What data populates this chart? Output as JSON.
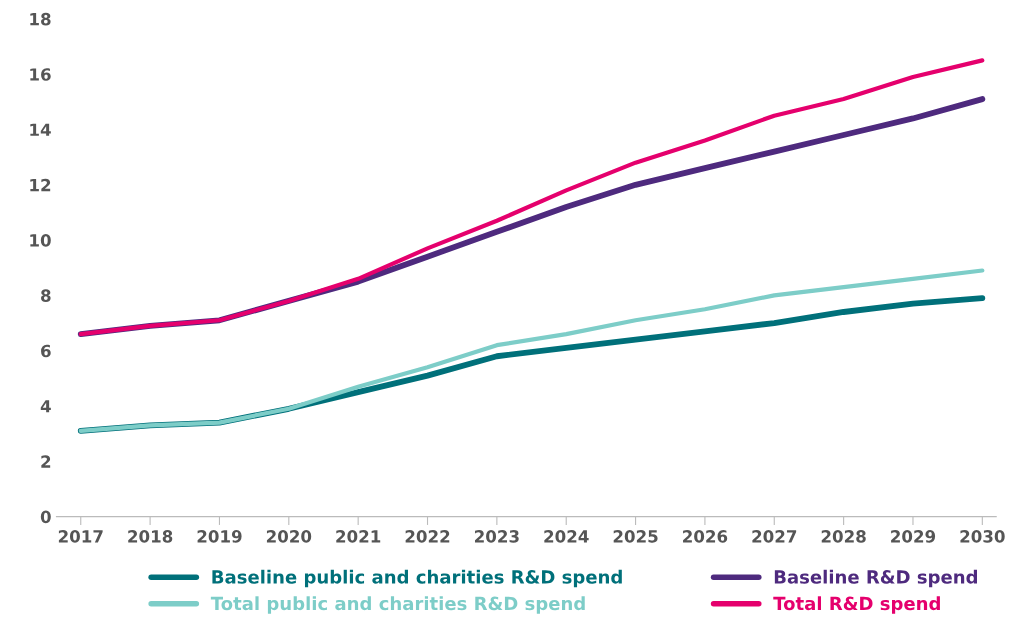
{
  "chart_data": {
    "type": "line",
    "categories": [
      "2017",
      "2018",
      "2019",
      "2020",
      "2021",
      "2022",
      "2023",
      "2024",
      "2025",
      "2026",
      "2027",
      "2028",
      "2029",
      "2030"
    ],
    "series": [
      {
        "name": "Baseline public and charities R&D spend",
        "color": "#00707a",
        "values": [
          3.1,
          3.3,
          3.4,
          3.9,
          4.5,
          5.1,
          5.8,
          6.1,
          6.4,
          6.7,
          7.0,
          7.4,
          7.7,
          7.9
        ]
      },
      {
        "name": "Total public and charities R&D spend",
        "color": "#7dcdc8",
        "values": [
          3.1,
          3.3,
          3.4,
          3.9,
          4.7,
          5.4,
          6.2,
          6.6,
          7.1,
          7.5,
          8.0,
          8.3,
          8.6,
          8.9
        ]
      },
      {
        "name": "Baseline R&D spend",
        "color": "#4e2a7e",
        "values": [
          6.6,
          6.9,
          7.1,
          7.8,
          8.5,
          9.4,
          10.3,
          11.2,
          12.0,
          12.6,
          13.2,
          13.8,
          14.4,
          15.1
        ]
      },
      {
        "name": "Total R&D spend",
        "color": "#e5006d",
        "values": [
          6.6,
          6.9,
          7.1,
          7.8,
          8.6,
          9.7,
          10.7,
          11.8,
          12.8,
          13.6,
          14.5,
          15.1,
          15.9,
          16.5
        ]
      }
    ],
    "ylim": [
      0,
      18
    ],
    "yticks": [
      0,
      2,
      4,
      6,
      8,
      10,
      12,
      14,
      16,
      18
    ],
    "grid": false,
    "legend": "bottom",
    "marker": "none",
    "line_style": "solid"
  }
}
